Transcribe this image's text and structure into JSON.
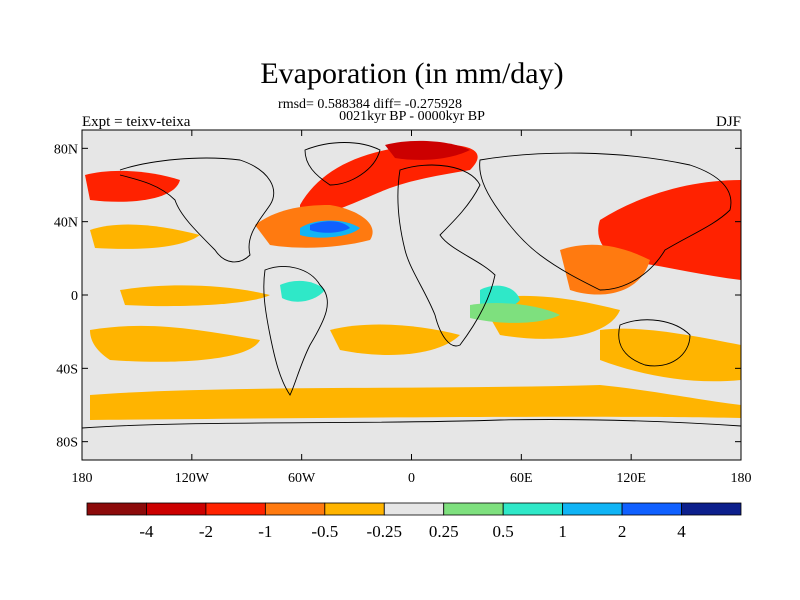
{
  "title": "Evaporation (in mm/day)",
  "stats_line": "rmsd= 0.588384 diff= -0.275928",
  "period_line": "0021kyr BP - 0000kyr BP",
  "left_label": "Expt = teixv-teixa",
  "right_label": "DJF",
  "lat_ticks": [
    "80N",
    "40N",
    "0",
    "40S",
    "80S"
  ],
  "lon_ticks": [
    "180",
    "120W",
    "60W",
    "0",
    "60E",
    "120E",
    "180"
  ],
  "colorbar": {
    "labels": [
      "-4",
      "-2",
      "-1",
      "-0.5",
      "-0.25",
      "0.25",
      "0.5",
      "1",
      "2",
      "4"
    ],
    "colors": [
      "#8c0a0a",
      "#cc0000",
      "#ff2200",
      "#ff7a10",
      "#ffb400",
      "#e6e6e6",
      "#7ee07e",
      "#2fe8c8",
      "#10b4f5",
      "#1060ff",
      "#0c1f8c"
    ]
  },
  "colors": {
    "background": "#e6e6e6",
    "coast": "#000000"
  }
}
